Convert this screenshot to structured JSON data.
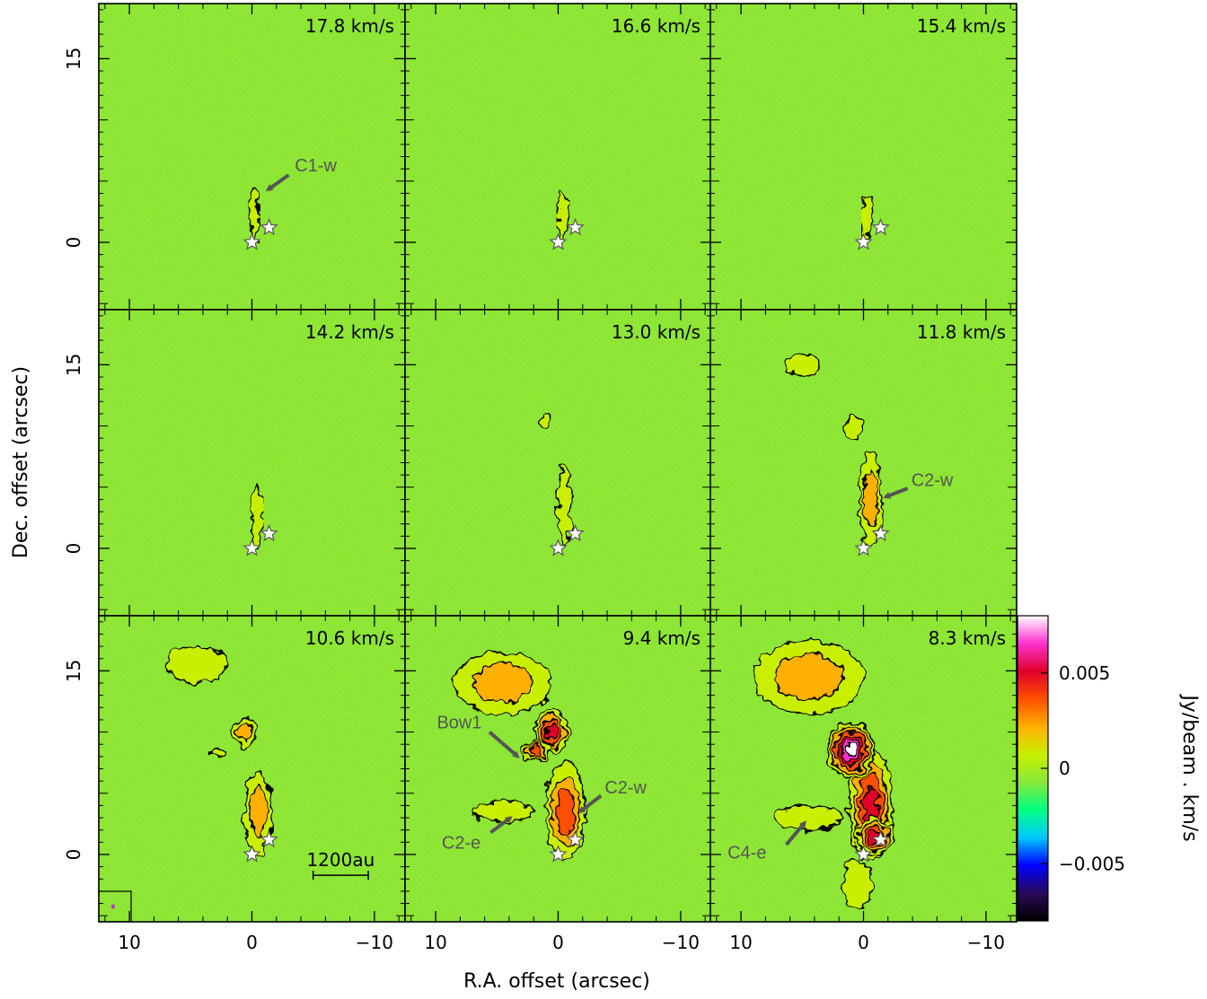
{
  "chart_data": {
    "type": "heatmap",
    "xlabel": "R.A. offset (arcsec)",
    "ylabel": "Dec. offset (arcsec)",
    "xlim": [
      12.5,
      -12.5
    ],
    "ylim": [
      -5.5,
      19.5
    ],
    "x_ticks": [
      10,
      0,
      -10
    ],
    "x_tick_labels": [
      "10",
      "0",
      "−10"
    ],
    "y_ticks": [
      0,
      15
    ],
    "y_tick_labels": [
      "0",
      "15"
    ],
    "colorbar": {
      "label": "Jy/beam . km/s",
      "range": [
        -0.008,
        0.008
      ],
      "ticks": [
        0.005,
        0,
        -0.005
      ],
      "tick_labels": [
        "0.005",
        "0",
        "−0.005"
      ],
      "colors": [
        "#000000",
        "#2a0a5a",
        "#0000ff",
        "#00c8ff",
        "#00ff80",
        "#88e83a",
        "#c8ef00",
        "#ffb000",
        "#ff5000",
        "#e0002a",
        "#ff30d0",
        "#ffffff"
      ]
    },
    "colors": {
      "background_map": "#8be534",
      "contour": "#000000",
      "annotation": "#555555",
      "arrow": "#555555",
      "star_fill": "#ffffff"
    },
    "stars": [
      {
        "x": 0.0,
        "y": 0.0
      },
      {
        "x": -1.4,
        "y": 1.2
      }
    ],
    "panels": [
      {
        "velocity": "17.8 km/s",
        "blobs": [
          {
            "x": -0.2,
            "y": 2.2,
            "w": 0.8,
            "h": 4.2,
            "intensity": 0.0015
          }
        ],
        "annotations": [
          {
            "text": "C1-w",
            "text_x": -3.5,
            "text_y": 6.3,
            "arrow_from": [
              -3.0,
              5.5
            ],
            "arrow_to": [
              -1.3,
              4.3
            ]
          }
        ]
      },
      {
        "velocity": "16.6 km/s",
        "blobs": [
          {
            "x": -0.4,
            "y": 2.3,
            "w": 0.9,
            "h": 4.0,
            "intensity": 0.0012
          }
        ],
        "annotations": []
      },
      {
        "velocity": "15.4 km/s",
        "blobs": [
          {
            "x": -0.3,
            "y": 2.0,
            "w": 0.8,
            "h": 3.6,
            "intensity": 0.0012
          }
        ],
        "annotations": []
      },
      {
        "velocity": "14.2 km/s",
        "blobs": [
          {
            "x": -0.4,
            "y": 2.5,
            "w": 0.9,
            "h": 5.0,
            "intensity": 0.0013
          }
        ],
        "annotations": []
      },
      {
        "velocity": "13.0 km/s",
        "blobs": [
          {
            "x": -0.5,
            "y": 3.5,
            "w": 1.1,
            "h": 6.5,
            "intensity": 0.0015
          },
          {
            "x": 1.0,
            "y": 10.5,
            "w": 0.8,
            "h": 1.2,
            "intensity": 0.001
          }
        ],
        "annotations": []
      },
      {
        "velocity": "11.8 km/s",
        "blobs": [
          {
            "x": -0.6,
            "y": 4.0,
            "w": 1.8,
            "h": 7.5,
            "intensity": 0.0022
          },
          {
            "x": 0.8,
            "y": 9.8,
            "w": 1.2,
            "h": 2.0,
            "intensity": 0.0015
          },
          {
            "x": 5.0,
            "y": 15.0,
            "w": 3.0,
            "h": 1.6,
            "intensity": 0.0012
          }
        ],
        "annotations": [
          {
            "text": "C2-w",
            "text_x": -3.9,
            "text_y": 5.6,
            "arrow_from": [
              -3.6,
              4.9
            ],
            "arrow_to": [
              -1.8,
              4.2
            ]
          }
        ]
      },
      {
        "velocity": "10.6 km/s",
        "blobs": [
          {
            "x": -0.5,
            "y": 3.5,
            "w": 2.2,
            "h": 7.0,
            "intensity": 0.0028
          },
          {
            "x": 0.6,
            "y": 10.0,
            "w": 1.8,
            "h": 2.4,
            "intensity": 0.0025
          },
          {
            "x": 4.5,
            "y": 15.5,
            "w": 5.0,
            "h": 3.0,
            "intensity": 0.0018
          },
          {
            "x": 2.8,
            "y": 8.3,
            "w": 1.0,
            "h": 0.7,
            "intensity": 0.002
          }
        ],
        "annotations": [],
        "scale_bar": {
          "label": "1200au",
          "x_start": -5.0,
          "x_end": -9.5,
          "y": -1.7
        },
        "beam_box": true
      },
      {
        "velocity": "9.4 km/s",
        "blobs": [
          {
            "x": -0.6,
            "y": 3.5,
            "w": 3.2,
            "h": 8.0,
            "intensity": 0.004
          },
          {
            "x": 0.5,
            "y": 10.0,
            "w": 2.8,
            "h": 3.5,
            "intensity": 0.006
          },
          {
            "x": 4.5,
            "y": 14.0,
            "w": 8.0,
            "h": 5.0,
            "intensity": 0.0025
          },
          {
            "x": 1.8,
            "y": 8.5,
            "w": 2.4,
            "h": 1.6,
            "intensity": 0.0045
          },
          {
            "x": 4.5,
            "y": 3.5,
            "w": 5.0,
            "h": 1.6,
            "intensity": 0.0012
          }
        ],
        "annotations": [
          {
            "text": "Bow1",
            "text_x": 9.9,
            "text_y": 10.8,
            "arrow_from": [
              5.6,
              10.0
            ],
            "arrow_to": [
              3.3,
              8.0
            ]
          },
          {
            "text": "C2-w",
            "text_x": -3.8,
            "text_y": 5.5,
            "arrow_from": [
              -3.5,
              4.8
            ],
            "arrow_to": [
              -1.8,
              3.5
            ]
          },
          {
            "text": "C2-e",
            "text_x": 9.5,
            "text_y": 1.0,
            "arrow_from": [
              5.5,
              1.8
            ],
            "arrow_to": [
              3.9,
              3.0
            ]
          }
        ]
      },
      {
        "velocity": "8.3 km/s",
        "blobs": [
          {
            "x": -0.6,
            "y": 4.0,
            "w": 3.6,
            "h": 9.0,
            "intensity": 0.005
          },
          {
            "x": 1.0,
            "y": 8.5,
            "w": 3.8,
            "h": 4.5,
            "intensity": 0.008
          },
          {
            "x": 4.5,
            "y": 14.5,
            "w": 9.0,
            "h": 6.0,
            "intensity": 0.003
          },
          {
            "x": -0.9,
            "y": 1.5,
            "w": 3.0,
            "h": 3.0,
            "intensity": 0.005
          },
          {
            "x": 4.5,
            "y": 3.0,
            "w": 5.5,
            "h": 2.0,
            "intensity": 0.0015
          },
          {
            "x": 0.5,
            "y": -2.5,
            "w": 2.5,
            "h": 4.0,
            "intensity": 0.001
          }
        ],
        "annotations": [
          {
            "text": "C4-e",
            "text_x": 11.1,
            "text_y": 0.2,
            "arrow_from": [
              6.3,
              0.8
            ],
            "arrow_to": [
              4.8,
              2.6
            ]
          }
        ]
      }
    ]
  }
}
